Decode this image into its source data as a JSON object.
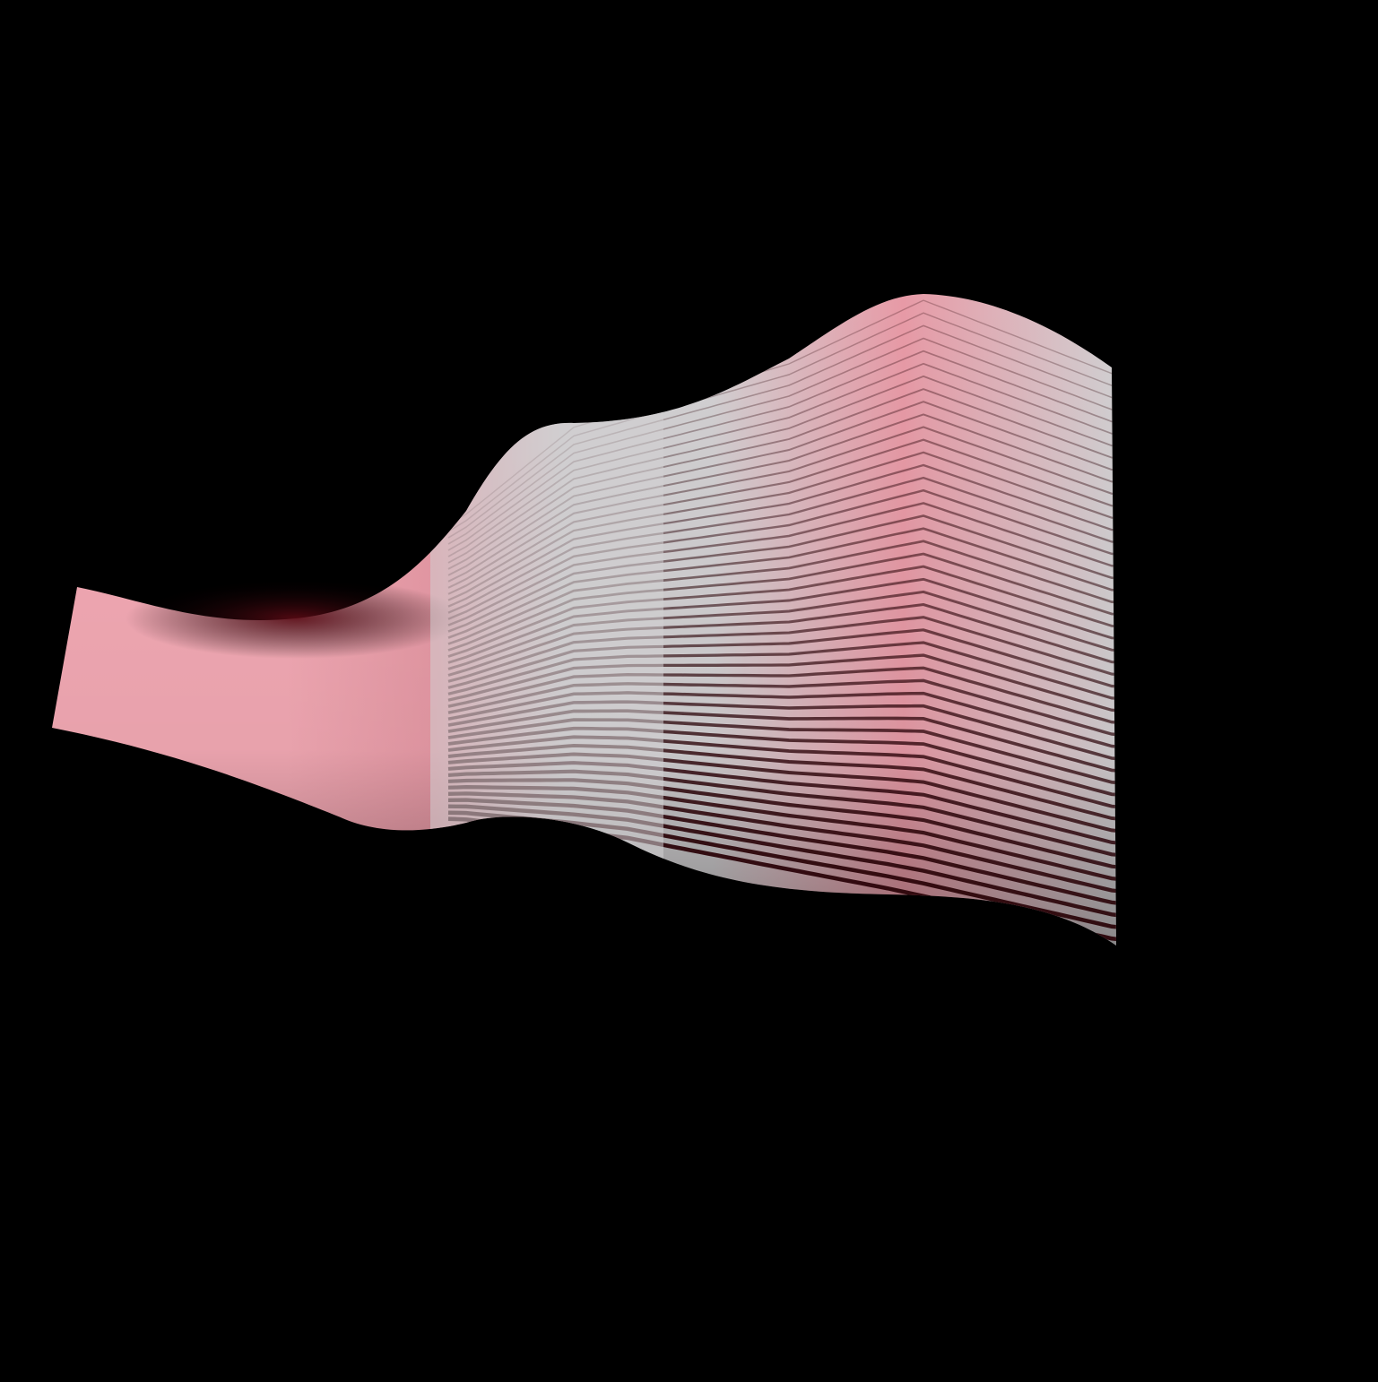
{
  "image": {
    "subject": "wavy-ribbon-surface",
    "background_color": "#000000",
    "colors": {
      "pink_light": "#f4aab5",
      "pink_mid": "#e79aa6",
      "silver": "#d2d0d2",
      "maroon": "#5a0a14",
      "deep_red": "#2a0308"
    },
    "stripe_count": 48
  }
}
